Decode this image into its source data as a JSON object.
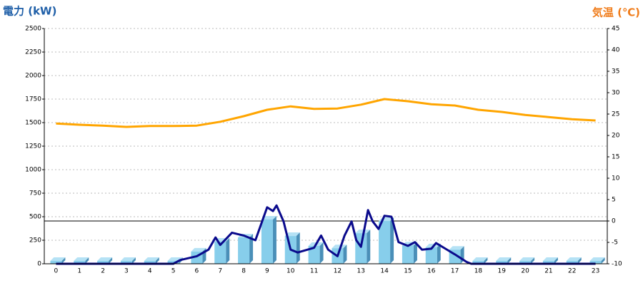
{
  "chart_data": {
    "type": "bar",
    "y_label": "電力 (kW)",
    "y2_label": "気温 (℃)",
    "categories": [
      "0",
      "1",
      "2",
      "3",
      "4",
      "5",
      "6",
      "7",
      "8",
      "9",
      "10",
      "11",
      "12",
      "13",
      "14",
      "15",
      "16",
      "17",
      "18",
      "19",
      "20",
      "21",
      "22",
      "23"
    ],
    "ylim": [
      0,
      2500
    ],
    "yticks": [
      0,
      250,
      500,
      750,
      1000,
      1250,
      1500,
      1750,
      2000,
      2250,
      2500
    ],
    "y2lim": [
      -10,
      45
    ],
    "y2ticks": [
      -10,
      -5,
      0,
      5,
      10,
      15,
      20,
      25,
      30,
      35,
      40,
      45
    ],
    "grid": true,
    "series": [
      {
        "type": "bar",
        "color": "#87ceeb",
        "values": [
          30,
          30,
          30,
          30,
          30,
          30,
          130,
          235,
          280,
          470,
          295,
          190,
          165,
          325,
          455,
          195,
          175,
          150,
          30,
          30,
          30,
          30,
          30,
          30
        ]
      },
      {
        "type": "line",
        "color": "#0a0a8c",
        "x": [
          0,
          5,
          5.3,
          6,
          6.5,
          6.8,
          7,
          7.5,
          8,
          8.5,
          9,
          9.25,
          9.4,
          9.7,
          10,
          10.3,
          11,
          11.3,
          11.6,
          12,
          12.3,
          12.6,
          12.8,
          13,
          13.3,
          13.5,
          13.75,
          14,
          14.3,
          14.6,
          15,
          15.3,
          15.6,
          16,
          16.2,
          16.6,
          17,
          17.5,
          17.7,
          23
        ],
        "values": [
          0,
          0,
          40,
          80,
          150,
          280,
          200,
          330,
          300,
          250,
          600,
          560,
          620,
          450,
          150,
          120,
          170,
          300,
          150,
          80,
          300,
          450,
          250,
          180,
          570,
          450,
          370,
          510,
          500,
          230,
          190,
          230,
          150,
          160,
          220,
          160,
          100,
          20,
          0,
          0
        ]
      },
      {
        "type": "line",
        "axis": "y2",
        "color": "#ffa500",
        "values": [
          22.8,
          22.5,
          22.3,
          22,
          22.2,
          22.2,
          22.3,
          23.2,
          24.5,
          26,
          26.8,
          26.2,
          26.3,
          27.2,
          28.5,
          28,
          27.3,
          27,
          26,
          25.5,
          24.8,
          24.3,
          23.8,
          23.5
        ]
      }
    ]
  }
}
